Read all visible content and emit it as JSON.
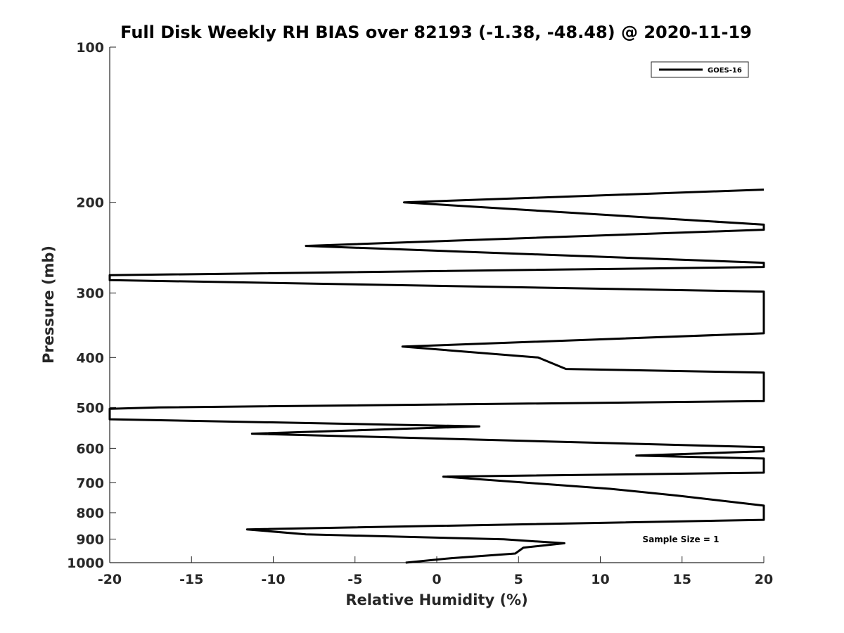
{
  "chart_data": {
    "type": "line",
    "title": "Full Disk Weekly RH BIAS over 82193 (-1.38, -48.48) @ 2020-11-19",
    "xlabel": "Relative Humidity (%)",
    "ylabel": "Pressure (mb)",
    "xlim": [
      -20,
      20
    ],
    "ylim": [
      100,
      1000
    ],
    "y_scale": "log",
    "y_reversed": true,
    "x_ticks": [
      -20,
      -15,
      -10,
      -5,
      0,
      5,
      10,
      15,
      20
    ],
    "x_tick_labels": [
      "-20",
      "-15",
      "-10",
      "-5",
      "0",
      "5",
      "10",
      "15",
      "20"
    ],
    "y_ticks": [
      100,
      200,
      300,
      400,
      500,
      600,
      700,
      800,
      900,
      1000
    ],
    "y_tick_labels": [
      "100",
      "200",
      "300",
      "400",
      "500",
      "600",
      "700",
      "800",
      "900",
      "1000"
    ],
    "grid": false,
    "legend_position": "top-right",
    "series": [
      {
        "name": "GOES-16",
        "color": "#000000",
        "points": [
          [
            20,
            189
          ],
          [
            -2,
            200
          ],
          [
            20,
            221
          ],
          [
            20,
            226
          ],
          [
            -8,
            243
          ],
          [
            20,
            262
          ],
          [
            20,
            267
          ],
          [
            -20,
            277
          ],
          [
            -20,
            283
          ],
          [
            20,
            298
          ],
          [
            20,
            359
          ],
          [
            -2.1,
            381
          ],
          [
            6.2,
            400
          ],
          [
            7.9,
            421
          ],
          [
            20,
            428
          ],
          [
            20,
            486
          ],
          [
            -17,
            500
          ],
          [
            -20,
            503
          ],
          [
            -20,
            527
          ],
          [
            2.6,
            544
          ],
          [
            -11.3,
            562
          ],
          [
            20,
            597
          ],
          [
            20,
            608
          ],
          [
            12.2,
            620
          ],
          [
            20,
            628
          ],
          [
            20,
            669
          ],
          [
            0.4,
            681
          ],
          [
            10.6,
            719
          ],
          [
            14.7,
            741
          ],
          [
            20,
            775
          ],
          [
            20,
            826
          ],
          [
            -11.6,
            862
          ],
          [
            -8,
            881
          ],
          [
            4.1,
            901
          ],
          [
            7.8,
            917
          ],
          [
            5.3,
            935
          ],
          [
            4.8,
            960
          ],
          [
            0.9,
            980
          ],
          [
            -1.9,
            1000
          ]
        ]
      }
    ],
    "annotations": [
      {
        "text": "Sample Size = 1"
      }
    ]
  }
}
